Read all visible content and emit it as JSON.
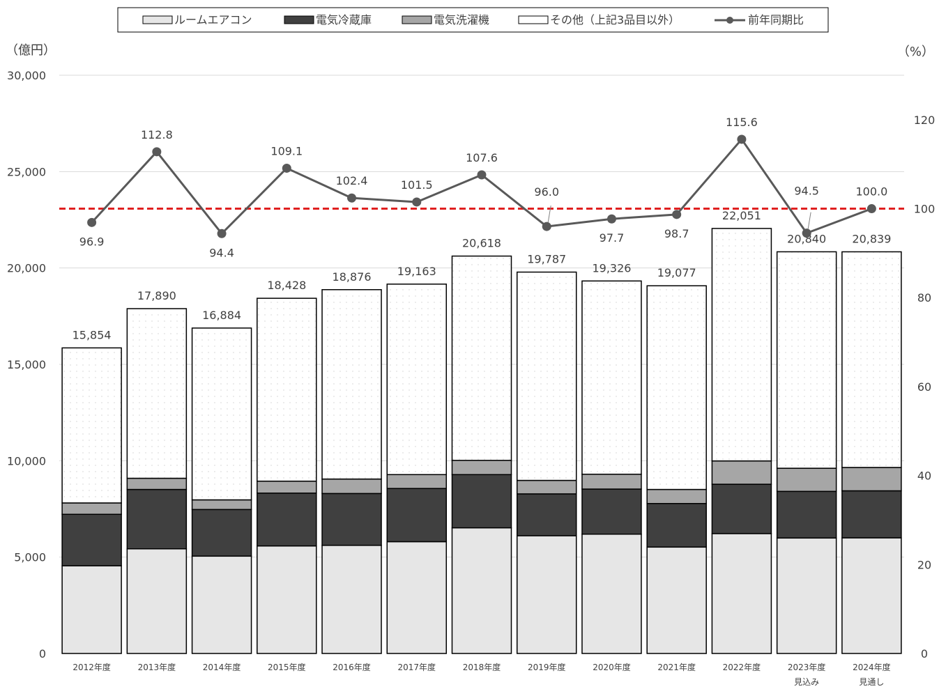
{
  "chart_data": {
    "type": "bar",
    "stacked": true,
    "left_axis_unit": "（億円）",
    "right_axis_unit": "（%）",
    "ylim": [
      0,
      30000
    ],
    "y2lim": [
      0,
      130
    ],
    "y_ticks": [
      "0",
      "5,000",
      "10,000",
      "15,000",
      "20,000",
      "25,000",
      "30,000"
    ],
    "y_tick_values": [
      0,
      5000,
      10000,
      15000,
      20000,
      25000,
      30000
    ],
    "y2_ticks": [
      "0",
      "20",
      "40",
      "60",
      "80",
      "100",
      "120"
    ],
    "y2_tick_values": [
      0,
      20,
      40,
      60,
      80,
      100,
      120
    ],
    "grid": true,
    "legend_position": "top",
    "categories": [
      [
        "2012年度"
      ],
      [
        "2013年度"
      ],
      [
        "2014年度"
      ],
      [
        "2015年度"
      ],
      [
        "2016年度"
      ],
      [
        "2017年度"
      ],
      [
        "2018年度"
      ],
      [
        "2019年度"
      ],
      [
        "2020年度"
      ],
      [
        "2021年度"
      ],
      [
        "2022年度"
      ],
      [
        "2023年度",
        "見込み"
      ],
      [
        "2024年度",
        "見通し"
      ]
    ],
    "series": [
      {
        "name": "ルームエアコン",
        "kind": "bar",
        "color": "#e6e6e6",
        "values": [
          4550,
          5430,
          5050,
          5580,
          5610,
          5800,
          6520,
          6110,
          6190,
          5520,
          6220,
          5990,
          6000
        ]
      },
      {
        "name": "電気冷蔵庫",
        "kind": "bar",
        "color": "#404040",
        "values": [
          2670,
          3080,
          2420,
          2740,
          2690,
          2760,
          2760,
          2170,
          2340,
          2260,
          2560,
          2420,
          2440
        ]
      },
      {
        "name": "電気洗濯機",
        "kind": "bar",
        "color": "#a6a6a6",
        "values": [
          590,
          580,
          500,
          620,
          750,
          720,
          740,
          700,
          770,
          730,
          1210,
          1200,
          1210
        ]
      },
      {
        "name": "その他（上記3品目以外）",
        "kind": "bar",
        "color": "#ffffff",
        "values": [
          8044,
          8800,
          8914,
          9488,
          9826,
          9883,
          10598,
          10807,
          10026,
          10567,
          12061,
          11230,
          11189
        ]
      },
      {
        "name": "前年同期比",
        "kind": "line",
        "axis": "right",
        "color": "#595959",
        "values": [
          96.9,
          112.8,
          94.4,
          109.1,
          102.4,
          101.5,
          107.6,
          96.0,
          97.7,
          98.7,
          115.6,
          94.5,
          100.0
        ]
      }
    ],
    "totals": [
      15854,
      17890,
      16884,
      18428,
      18876,
      19163,
      20618,
      19787,
      19326,
      19077,
      22051,
      20840,
      20839
    ],
    "total_labels": [
      "15,854",
      "17,890",
      "16,884",
      "18,428",
      "18,876",
      "19,163",
      "20,618",
      "19,787",
      "19,326",
      "19,077",
      "22,051",
      "20,840",
      "20,839"
    ],
    "ratio_labels": [
      "96.9",
      "112.8",
      "94.4",
      "109.1",
      "102.4",
      "101.5",
      "107.6",
      "96.0",
      "97.7",
      "98.7",
      "115.6",
      "94.5",
      "100.0"
    ],
    "ratio_label_side": [
      "below",
      "above",
      "below",
      "above",
      "above",
      "above",
      "above",
      "above",
      "below",
      "below",
      "above",
      "above",
      "above"
    ],
    "reference_line": {
      "axis": "right",
      "value": 100,
      "color": "#e02020",
      "style": "dashed"
    }
  }
}
